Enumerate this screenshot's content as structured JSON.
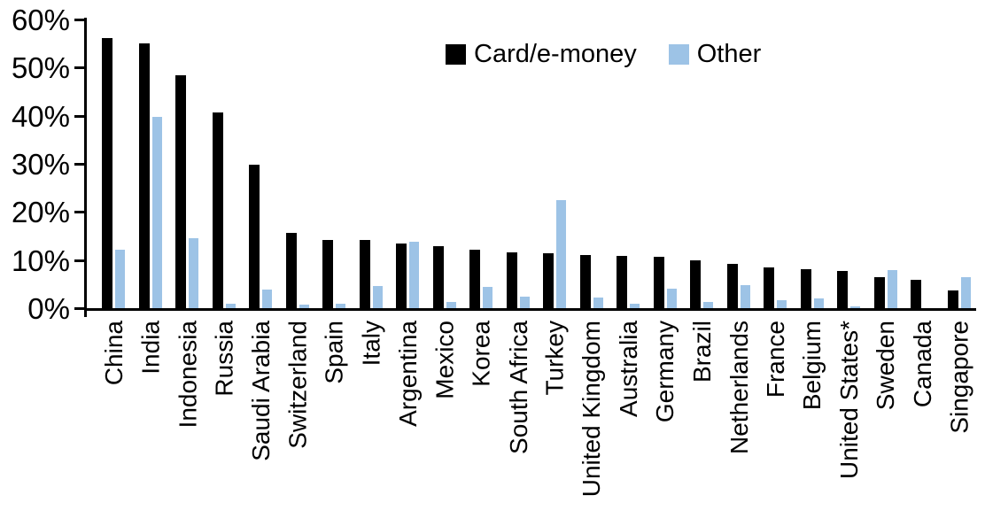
{
  "chart_data": {
    "type": "bar",
    "title": "",
    "xlabel": "",
    "ylabel": "",
    "categories": [
      "China",
      "India",
      "Indonesia",
      "Russia",
      "Saudi Arabia",
      "Switzerland",
      "Spain",
      "Italy",
      "Argentina",
      "Mexico",
      "Korea",
      "South Africa",
      "Turkey",
      "United Kingdom",
      "Australia",
      "Germany",
      "Brazil",
      "Netherlands",
      "France",
      "Belgium",
      "United States*",
      "Sweden",
      "Canada",
      "Singapore"
    ],
    "series": [
      {
        "name": "Card/e-money",
        "color": "#000000",
        "values": [
          56.2,
          55.0,
          48.4,
          40.6,
          29.9,
          15.6,
          14.2,
          14.1,
          13.4,
          12.8,
          12.2,
          11.6,
          11.5,
          11.0,
          10.8,
          10.6,
          9.9,
          9.2,
          8.5,
          8.1,
          7.7,
          6.4,
          5.9,
          3.7
        ]
      },
      {
        "name": "Other",
        "color": "#9DC3E6",
        "values": [
          12.2,
          39.7,
          14.6,
          1.0,
          3.9,
          0.8,
          1.0,
          4.6,
          13.8,
          1.3,
          4.4,
          2.4,
          22.5,
          2.2,
          0.9,
          4.0,
          1.2,
          4.7,
          1.6,
          2.0,
          0.3,
          7.9,
          0.0,
          6.5
        ]
      }
    ],
    "y_axis": {
      "unit": "%",
      "min": 0,
      "max": 60,
      "step": 10,
      "tick_labels": [
        "0%",
        "10%",
        "20%",
        "30%",
        "40%",
        "50%",
        "60%"
      ]
    },
    "legend": {
      "position": "top-center",
      "entries": [
        "Card/e-money",
        "Other"
      ]
    },
    "grid": false
  }
}
